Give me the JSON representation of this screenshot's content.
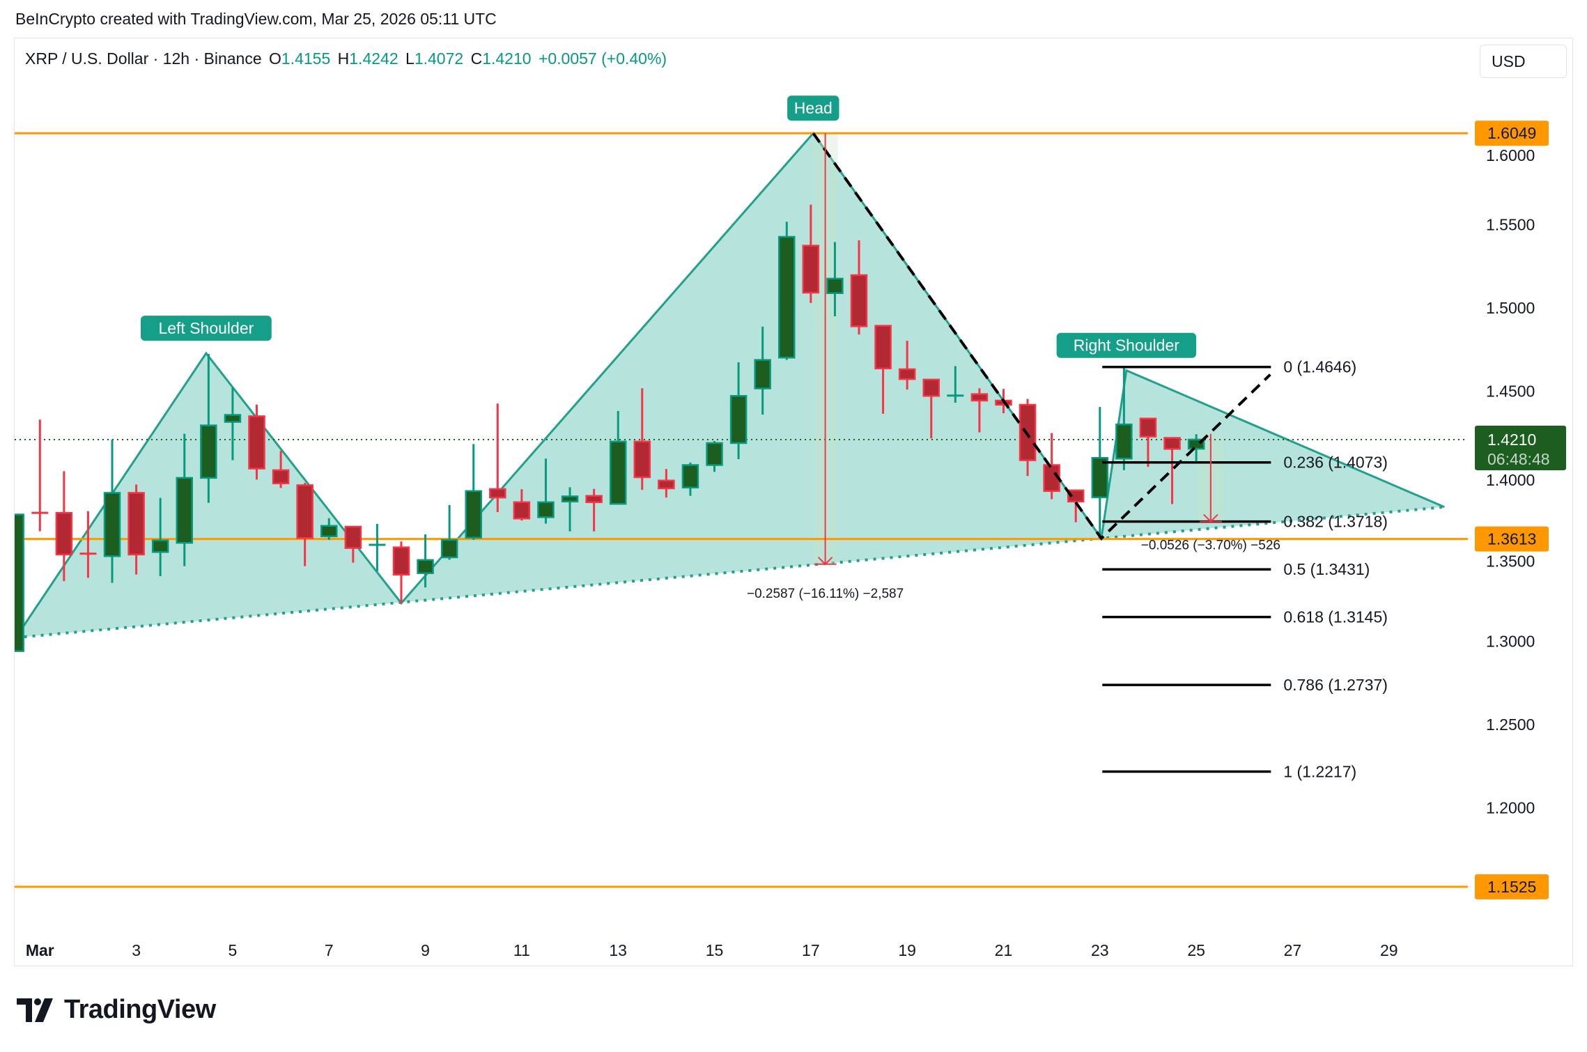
{
  "credit": "BeInCrypto created with TradingView.com, Mar 25, 2026 05:11 UTC",
  "legend": {
    "symbol": "XRP / U.S. Dollar · 12h · Binance",
    "o_label": "O",
    "o": "1.4155",
    "h_label": "H",
    "h": "1.4242",
    "l_label": "L",
    "l": "1.4072",
    "c_label": "C",
    "c": "1.4210",
    "change": "+0.0057 (+0.40%)"
  },
  "currency_button": "USD",
  "logo": {
    "text": "TradingView"
  },
  "colors": {
    "up_body": "#1b5e20",
    "up_border": "#089981",
    "down_body": "#b22833",
    "down_border": "#f23645",
    "pattern_fill": "#b2e3da",
    "pattern_stroke": "#22a08b",
    "label_bg": "#159f88",
    "orange": "#ff9800",
    "current": "#1b5e20"
  },
  "chart_data": {
    "type": "candlestick",
    "title": "XRP / U.S. Dollar · 12h · Binance",
    "ylim": [
      1.1,
      1.64
    ],
    "y_ticks": [
      "1.6000",
      "1.5500",
      "1.5000",
      "1.4500",
      "1.4000",
      "1.3500",
      "1.3000",
      "1.2500",
      "1.2000"
    ],
    "y_tick_values": [
      1.6,
      1.55,
      1.5,
      1.45,
      1.4,
      1.35,
      1.3,
      1.25,
      1.2
    ],
    "x_ticks": [
      {
        "label": "Mar",
        "bar": 2
      },
      {
        "label": "3",
        "bar": 6
      },
      {
        "label": "5",
        "bar": 10
      },
      {
        "label": "7",
        "bar": 14
      },
      {
        "label": "9",
        "bar": 18
      },
      {
        "label": "11",
        "bar": 22
      },
      {
        "label": "13",
        "bar": 26
      },
      {
        "label": "15",
        "bar": 30
      },
      {
        "label": "17",
        "bar": 34
      },
      {
        "label": "19",
        "bar": 38
      },
      {
        "label": "21",
        "bar": 42
      },
      {
        "label": "23",
        "bar": 46
      },
      {
        "label": "25",
        "bar": 50
      },
      {
        "label": "27",
        "bar": 54
      },
      {
        "label": "29",
        "bar": 58
      }
    ],
    "candles": [
      [
        1.294,
        1.376,
        1.294,
        1.376
      ],
      [
        1.377,
        1.433,
        1.366,
        1.376
      ],
      [
        1.377,
        1.402,
        1.336,
        1.352
      ],
      [
        1.3525,
        1.378,
        1.338,
        1.3515
      ],
      [
        1.351,
        1.421,
        1.335,
        1.389
      ],
      [
        1.389,
        1.394,
        1.34,
        1.352
      ],
      [
        1.3535,
        1.386,
        1.339,
        1.3605
      ],
      [
        1.359,
        1.4245,
        1.345,
        1.398
      ],
      [
        1.398,
        1.4724,
        1.383,
        1.4295
      ],
      [
        1.4316,
        1.4524,
        1.4086,
        1.4358
      ],
      [
        1.435,
        1.442,
        1.397,
        1.4036
      ],
      [
        1.4026,
        1.4142,
        1.3919,
        1.3947
      ],
      [
        1.3936,
        1.395,
        1.345,
        1.3619
      ],
      [
        1.3629,
        1.3738,
        1.3608,
        1.3692
      ],
      [
        1.3687,
        1.3687,
        1.3471,
        1.3559
      ],
      [
        1.3574,
        1.3704,
        1.342,
        1.3578
      ],
      [
        1.3563,
        1.3598,
        1.3227,
        1.3399
      ],
      [
        1.3408,
        1.3641,
        1.3322,
        1.3487
      ],
      [
        1.3503,
        1.3817,
        1.3489,
        1.3608
      ],
      [
        1.3621,
        1.4183,
        1.3608,
        1.3901
      ],
      [
        1.3913,
        1.4426,
        1.3775,
        1.3862
      ],
      [
        1.3834,
        1.3912,
        1.3724,
        1.3736
      ],
      [
        1.3744,
        1.4096,
        1.3705,
        1.3834
      ],
      [
        1.3838,
        1.3924,
        1.3659,
        1.3869
      ],
      [
        1.3872,
        1.3914,
        1.3659,
        1.3834
      ],
      [
        1.3824,
        1.4382,
        1.3824,
        1.4198
      ],
      [
        1.4198,
        1.4518,
        1.3908,
        1.3984
      ],
      [
        1.3964,
        1.4033,
        1.3862,
        1.3917
      ],
      [
        1.3922,
        1.4072,
        1.3872,
        1.4057
      ],
      [
        1.4057,
        1.4201,
        1.4016,
        1.4189
      ],
      [
        1.4189,
        1.4674,
        1.4092,
        1.4472
      ],
      [
        1.4517,
        1.4888,
        1.436,
        1.4688
      ],
      [
        1.4702,
        1.5518,
        1.4688,
        1.5427
      ],
      [
        1.5374,
        1.562,
        1.503,
        1.5092
      ],
      [
        1.5089,
        1.5396,
        1.495,
        1.5176
      ],
      [
        1.5197,
        1.5406,
        1.4841,
        1.489
      ],
      [
        1.4893,
        1.4893,
        1.4365,
        1.4637
      ],
      [
        1.4632,
        1.4803,
        1.451,
        1.4573
      ],
      [
        1.457,
        1.457,
        1.4217,
        1.4472
      ],
      [
        1.447,
        1.4651,
        1.4431,
        1.4474
      ],
      [
        1.4483,
        1.4518,
        1.4253,
        1.4444
      ],
      [
        1.4444,
        1.4514,
        1.4368,
        1.4419
      ],
      [
        1.4419,
        1.4454,
        1.3992,
        1.4086
      ],
      [
        1.4057,
        1.4249,
        1.3852,
        1.3901
      ],
      [
        1.3905,
        1.3905,
        1.3714,
        1.3838
      ],
      [
        1.3863,
        1.4406,
        1.3616,
        1.41
      ],
      [
        1.4096,
        1.4639,
        1.4026,
        1.4301
      ],
      [
        1.4336,
        1.4336,
        1.4046,
        1.4228
      ],
      [
        1.422,
        1.422,
        1.3823,
        1.4154
      ],
      [
        1.4155,
        1.4242,
        1.4072,
        1.421
      ]
    ],
    "horizontal_levels": [
      {
        "price": 1.6049,
        "label": "1.6049"
      },
      {
        "price": 1.3613,
        "label": "1.3613"
      },
      {
        "price": 1.1525,
        "label": "1.1525"
      }
    ],
    "current_price": {
      "price": 1.421,
      "label": "1.4210",
      "countdown": "06:48:48"
    },
    "pattern": {
      "name": "Head and Shoulders",
      "points": [
        [
          1,
          1.3021
        ],
        [
          8.9,
          1.4728
        ],
        [
          17.0,
          1.3228
        ],
        [
          34.1,
          1.6049
        ],
        [
          46.06,
          1.3617
        ],
        [
          47.1,
          1.4625
        ],
        [
          60.3,
          1.3805
        ]
      ],
      "labels": [
        {
          "text": "Left Shoulder",
          "bar": 8.9,
          "price": 1.4728
        },
        {
          "text": "Head",
          "bar": 34.1,
          "price": 1.6049
        },
        {
          "text": "Right Shoulder",
          "bar": 47.1,
          "price": 1.4625
        }
      ]
    },
    "measurements": [
      {
        "bar": 34.6,
        "from": 1.6049,
        "to": 1.3462,
        "label": "−0.2587 (−16.11%) −2,587"
      },
      {
        "bar": 50.6,
        "from": 1.4244,
        "to": 1.3718,
        "label": "−0.0526 (−3.70%) −526"
      }
    ],
    "fib": {
      "start_bar": 46.1,
      "end_bar": 53.1,
      "levels": [
        {
          "ratio": 0,
          "price": 1.4646,
          "label": "0 (1.4646)"
        },
        {
          "ratio": 0.236,
          "price": 1.4073,
          "label": "0.236 (1.4073)"
        },
        {
          "ratio": 0.382,
          "price": 1.3718,
          "label": "0.382 (1.3718)"
        },
        {
          "ratio": 0.5,
          "price": 1.3431,
          "label": "0.5 (1.3431)"
        },
        {
          "ratio": 0.618,
          "price": 1.3145,
          "label": "0.618 (1.3145)"
        },
        {
          "ratio": 0.786,
          "price": 1.2737,
          "label": "0.786 (1.2737)"
        },
        {
          "ratio": 1,
          "price": 1.2217,
          "label": "1 (1.2217)"
        }
      ],
      "trend_line": [
        [
          34.1,
          1.6049
        ],
        [
          46.06,
          1.3617
        ],
        [
          53.07,
          1.46
        ]
      ]
    }
  }
}
